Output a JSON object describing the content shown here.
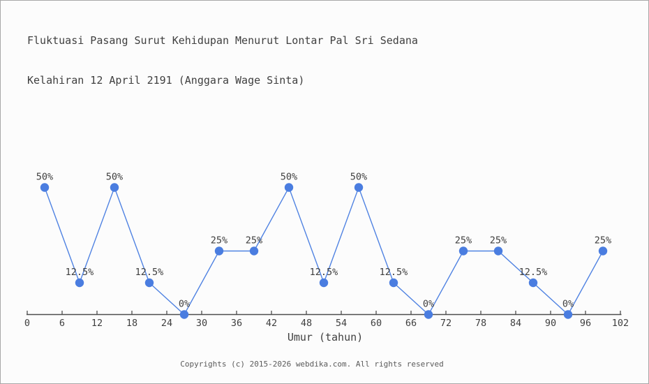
{
  "chart_data": {
    "type": "line",
    "title": "Fluktuasi Pasang Surut Kehidupan Menurut Lontar Pal Sri Sedana",
    "subtitle": "Kelahiran 12 April 2191 (Anggara Wage Sinta)",
    "xlabel": "Umur (tahun)",
    "ylabel": "",
    "x": [
      3,
      9,
      15,
      21,
      27,
      33,
      39,
      45,
      51,
      57,
      63,
      69,
      75,
      81,
      87,
      93,
      99
    ],
    "values": [
      50,
      12.5,
      50,
      12.5,
      0,
      25,
      25,
      50,
      12.5,
      50,
      12.5,
      0,
      25,
      25,
      12.5,
      0,
      25
    ],
    "point_labels": [
      "50%",
      "12.5%",
      "50%",
      "12.5%",
      "0%",
      "25%",
      "25%",
      "50%",
      "12.5%",
      "50%",
      "12.5%",
      "0%",
      "25%",
      "25%",
      "12.5%",
      "0%",
      "25%"
    ],
    "x_ticks": [
      0,
      6,
      12,
      18,
      24,
      30,
      36,
      42,
      48,
      54,
      60,
      66,
      72,
      78,
      84,
      90,
      96,
      102
    ],
    "xlim": [
      0,
      102
    ],
    "ylim": [
      0,
      50
    ],
    "grid": false,
    "legend": null
  },
  "footer": {
    "copyright": "Copyrights (c) 2015-2026 webdika.com. All rights reserved"
  },
  "theme": {
    "line_color": "#4f82e2",
    "marker_color": "#4a7de0",
    "axis_color": "#4d4d4d",
    "text_color": "#3f3f3f",
    "footer_color": "#5a5a5a",
    "background": "#fcfcfc",
    "border_color": "#a8a8a8"
  }
}
